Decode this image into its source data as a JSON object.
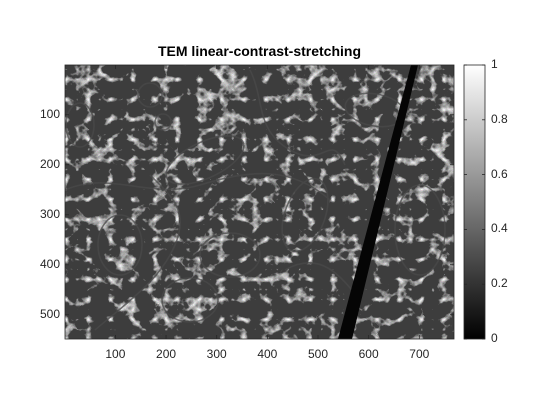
{
  "figure": {
    "title": "TEM linear-contrast-stretching",
    "image": {
      "x_ticks": [
        "100",
        "200",
        "300",
        "400",
        "500",
        "600",
        "700"
      ],
      "y_ticks": [
        "100",
        "200",
        "300",
        "400",
        "500"
      ],
      "x_range": [
        0.5,
        768.5
      ],
      "y_range": [
        0.5,
        548.5
      ]
    },
    "colorbar": {
      "ticks": [
        "0",
        "0.2",
        "0.4",
        "0.6",
        "0.8",
        "1"
      ],
      "colormap": "gray",
      "range": [
        0,
        1
      ]
    },
    "colors": {
      "axis": "#262626",
      "background": "#ffffff"
    }
  }
}
